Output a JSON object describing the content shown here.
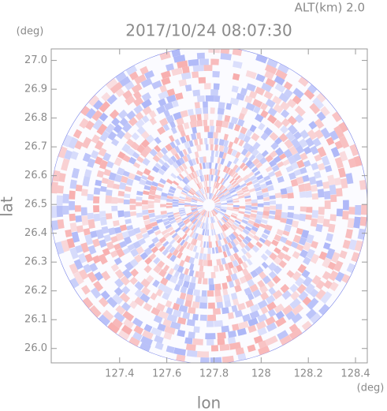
{
  "chart_data": {
    "type": "ppi",
    "title": "2017/10/24 08:07:30",
    "altitude_label": "ALT(km) 2.0",
    "xlabel": "lon",
    "ylabel": "lat",
    "x_unit": "(deg)",
    "y_unit": "(deg)",
    "xlim": [
      127.11,
      128.45
    ],
    "ylim": [
      25.95,
      27.04
    ],
    "xticks": [
      127.4,
      127.6,
      127.8,
      128.0,
      128.2,
      128.4
    ],
    "yticks": [
      {
        "value": 26,
        "label": "26.0"
      },
      26.1,
      26.2,
      26.3,
      26.4,
      26.5,
      26.6,
      26.7,
      26.8,
      26.9,
      {
        "value": 27,
        "label": "27.0"
      }
    ],
    "colors": [
      "#f7a9a9",
      "#a9b3f7"
    ]
  }
}
